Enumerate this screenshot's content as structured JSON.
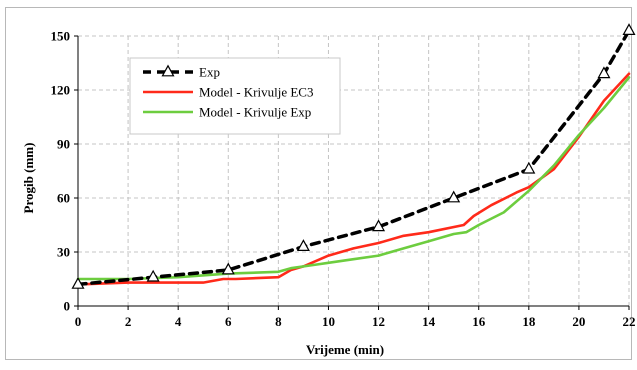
{
  "chart_data": {
    "type": "line",
    "title": "",
    "xlabel": "Vrijeme (min)",
    "ylabel": "Progib (mm)",
    "xlim": [
      0,
      22
    ],
    "ylim": [
      0,
      150
    ],
    "x_ticks": [
      0,
      2,
      4,
      6,
      8,
      10,
      12,
      14,
      16,
      18,
      20,
      22
    ],
    "y_ticks": [
      0,
      30,
      60,
      90,
      120,
      150
    ],
    "x_tick_labels": [
      "0",
      "2",
      "4",
      "6",
      "8",
      "10",
      "12",
      "14",
      "16",
      "18",
      "20",
      "22"
    ],
    "y_tick_labels": [
      "0",
      "30",
      "60",
      "90",
      "120",
      "150"
    ],
    "grid": true,
    "grid_style": "dashed",
    "legend_position": "top-left",
    "series": [
      {
        "name": "Exp",
        "style": "dashed-with-triangle-markers",
        "color": "#000000",
        "x": [
          0,
          3,
          6,
          9,
          12,
          15,
          18,
          21,
          22
        ],
        "y": [
          12,
          16,
          20,
          33,
          44,
          60,
          76,
          129,
          153
        ]
      },
      {
        "name": "Model - Krivulje EC3",
        "style": "solid",
        "color": "#ff2a1a",
        "x": [
          0,
          2,
          5,
          5.8,
          6.3,
          8,
          8.5,
          9,
          10,
          11,
          12,
          13,
          14,
          15.4,
          15.8,
          16.5,
          17.5,
          18,
          19,
          20,
          21,
          22
        ],
        "y": [
          12,
          13,
          13,
          15,
          15,
          16,
          20,
          22,
          28,
          32,
          35,
          39,
          41,
          45,
          50,
          56,
          63,
          66,
          76,
          94,
          114,
          129
        ]
      },
      {
        "name": "Model - Krivulje Exp",
        "style": "solid",
        "color": "#6dcd3f",
        "x": [
          0,
          2,
          4,
          6,
          8,
          8.5,
          9.5,
          10,
          11,
          12,
          13,
          14,
          15,
          15.5,
          16,
          17,
          18,
          19,
          20,
          21,
          22
        ],
        "y": [
          15,
          15,
          16,
          18,
          19,
          21,
          23,
          24,
          26,
          28,
          32,
          36,
          40,
          41,
          45,
          52,
          64,
          78,
          95,
          110,
          127
        ]
      }
    ]
  }
}
